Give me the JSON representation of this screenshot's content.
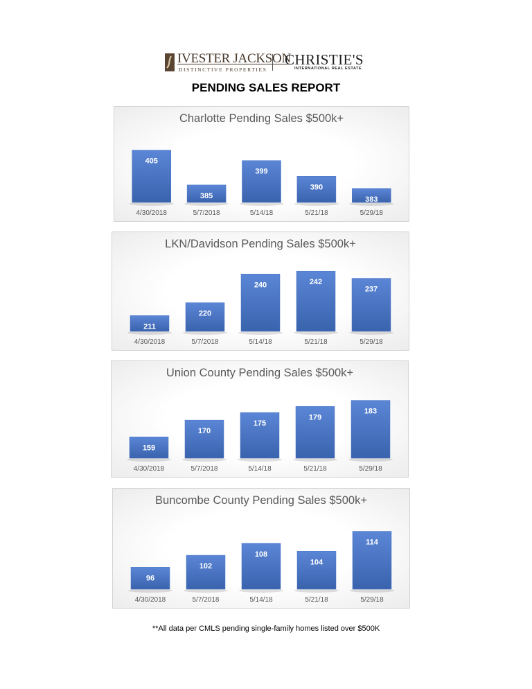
{
  "header": {
    "logo_left_name": "IVESTER JACKSON",
    "logo_left_tagline": "DISTINCTIVE PROPERTIES",
    "logo_right_name": "CHRISTIE'S",
    "logo_right_tagline": "INTERNATIONAL REAL ESTATE",
    "report_title": "PENDING SALES REPORT"
  },
  "colors": {
    "bar": "#4472c4",
    "bar_top": "#5b86d6",
    "bar_bottom": "#3a63ad",
    "bar_label": "#ffffff",
    "tick_label": "#595959",
    "title": "#595959"
  },
  "chart_data": [
    {
      "type": "bar",
      "title": "Charlotte Pending Sales $500k+",
      "categories": [
        "4/30/2018",
        "5/7/2018",
        "5/14/18",
        "5/21/18",
        "5/29/18"
      ],
      "values": [
        405,
        385,
        399,
        390,
        383
      ],
      "ylim": [
        375,
        410
      ],
      "data_labels": true,
      "grid": false,
      "legend": "none"
    },
    {
      "type": "bar",
      "title": "LKN/Davidson Pending Sales $500k+",
      "categories": [
        "4/30/2018",
        "5/7/2018",
        "5/14/18",
        "5/21/18",
        "5/29/18"
      ],
      "values": [
        211,
        220,
        240,
        242,
        237
      ],
      "ylim": [
        200,
        245
      ],
      "data_labels": true,
      "grid": false,
      "legend": "none"
    },
    {
      "type": "bar",
      "title": "Union County Pending Sales $500k+",
      "categories": [
        "4/30/2018",
        "5/7/2018",
        "5/14/18",
        "5/21/18",
        "5/29/18"
      ],
      "values": [
        159,
        170,
        175,
        179,
        183
      ],
      "ylim": [
        145,
        186
      ],
      "data_labels": true,
      "grid": false,
      "legend": "none"
    },
    {
      "type": "bar",
      "title": "Buncombe County Pending Sales $500k+",
      "categories": [
        "4/30/2018",
        "5/7/2018",
        "5/14/18",
        "5/21/18",
        "5/29/18"
      ],
      "values": [
        96,
        102,
        108,
        104,
        114
      ],
      "ylim": [
        85,
        118
      ],
      "data_labels": true,
      "grid": false,
      "legend": "none"
    }
  ],
  "footnote": "**All data per CMLS pending single-family homes listed over $500K"
}
